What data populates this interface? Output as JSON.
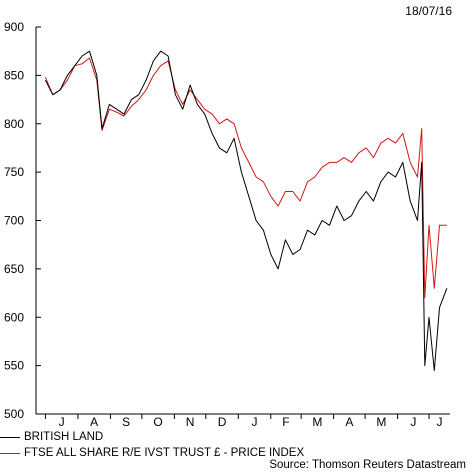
{
  "date_label": "18/07/16",
  "source": "Source: Thomson Reuters Datastream",
  "colors": {
    "british_land": "#000000",
    "ftse_re": "#d01818",
    "axis": "#000000"
  },
  "chart_data": {
    "type": "line",
    "title": "",
    "xlabel": "",
    "ylabel": "",
    "ylim": [
      500,
      900
    ],
    "yticks": [
      500,
      550,
      600,
      650,
      700,
      750,
      800,
      850,
      900
    ],
    "month_ticks": [
      "J",
      "A",
      "S",
      "O",
      "N",
      "D",
      "J",
      "F",
      "M",
      "A",
      "M",
      "J",
      "J"
    ],
    "legend": "bottom-left",
    "grid": false,
    "x": [
      "2015-07-01",
      "2015-07-08",
      "2015-07-15",
      "2015-07-22",
      "2015-07-29",
      "2015-08-05",
      "2015-08-12",
      "2015-08-19",
      "2015-08-24",
      "2015-08-31",
      "2015-09-07",
      "2015-09-14",
      "2015-09-21",
      "2015-09-28",
      "2015-10-05",
      "2015-10-12",
      "2015-10-19",
      "2015-10-26",
      "2015-11-02",
      "2015-11-09",
      "2015-11-16",
      "2015-11-23",
      "2015-11-30",
      "2015-12-07",
      "2015-12-14",
      "2015-12-21",
      "2015-12-28",
      "2016-01-04",
      "2016-01-11",
      "2016-01-18",
      "2016-01-25",
      "2016-02-01",
      "2016-02-08",
      "2016-02-15",
      "2016-02-22",
      "2016-02-29",
      "2016-03-07",
      "2016-03-14",
      "2016-03-21",
      "2016-03-28",
      "2016-04-04",
      "2016-04-11",
      "2016-04-18",
      "2016-04-25",
      "2016-05-02",
      "2016-05-09",
      "2016-05-16",
      "2016-05-23",
      "2016-05-30",
      "2016-06-06",
      "2016-06-13",
      "2016-06-20",
      "2016-06-24",
      "2016-06-27",
      "2016-07-01",
      "2016-07-06",
      "2016-07-11",
      "2016-07-18"
    ],
    "series": [
      {
        "name": "BRITISH LAND",
        "values": [
          845,
          830,
          835,
          850,
          860,
          870,
          875,
          850,
          795,
          820,
          815,
          810,
          825,
          830,
          845,
          865,
          875,
          870,
          830,
          815,
          840,
          820,
          810,
          790,
          775,
          770,
          785,
          750,
          725,
          700,
          690,
          665,
          650,
          680,
          665,
          670,
          690,
          685,
          700,
          695,
          715,
          700,
          705,
          720,
          730,
          720,
          740,
          750,
          745,
          760,
          720,
          700,
          760,
          550,
          600,
          545,
          610,
          630
        ]
      },
      {
        "name": "FTSE ALL SHARE R/E IVST TRUST £ - PRICE INDEX",
        "values": [
          848,
          830,
          835,
          845,
          860,
          862,
          868,
          845,
          793,
          815,
          812,
          808,
          818,
          825,
          835,
          850,
          860,
          865,
          835,
          820,
          835,
          825,
          815,
          810,
          800,
          805,
          800,
          775,
          760,
          745,
          740,
          725,
          715,
          730,
          730,
          720,
          740,
          745,
          755,
          760,
          760,
          765,
          760,
          770,
          775,
          765,
          780,
          785,
          780,
          790,
          760,
          745,
          795,
          620,
          695,
          630,
          695,
          695
        ]
      }
    ]
  }
}
